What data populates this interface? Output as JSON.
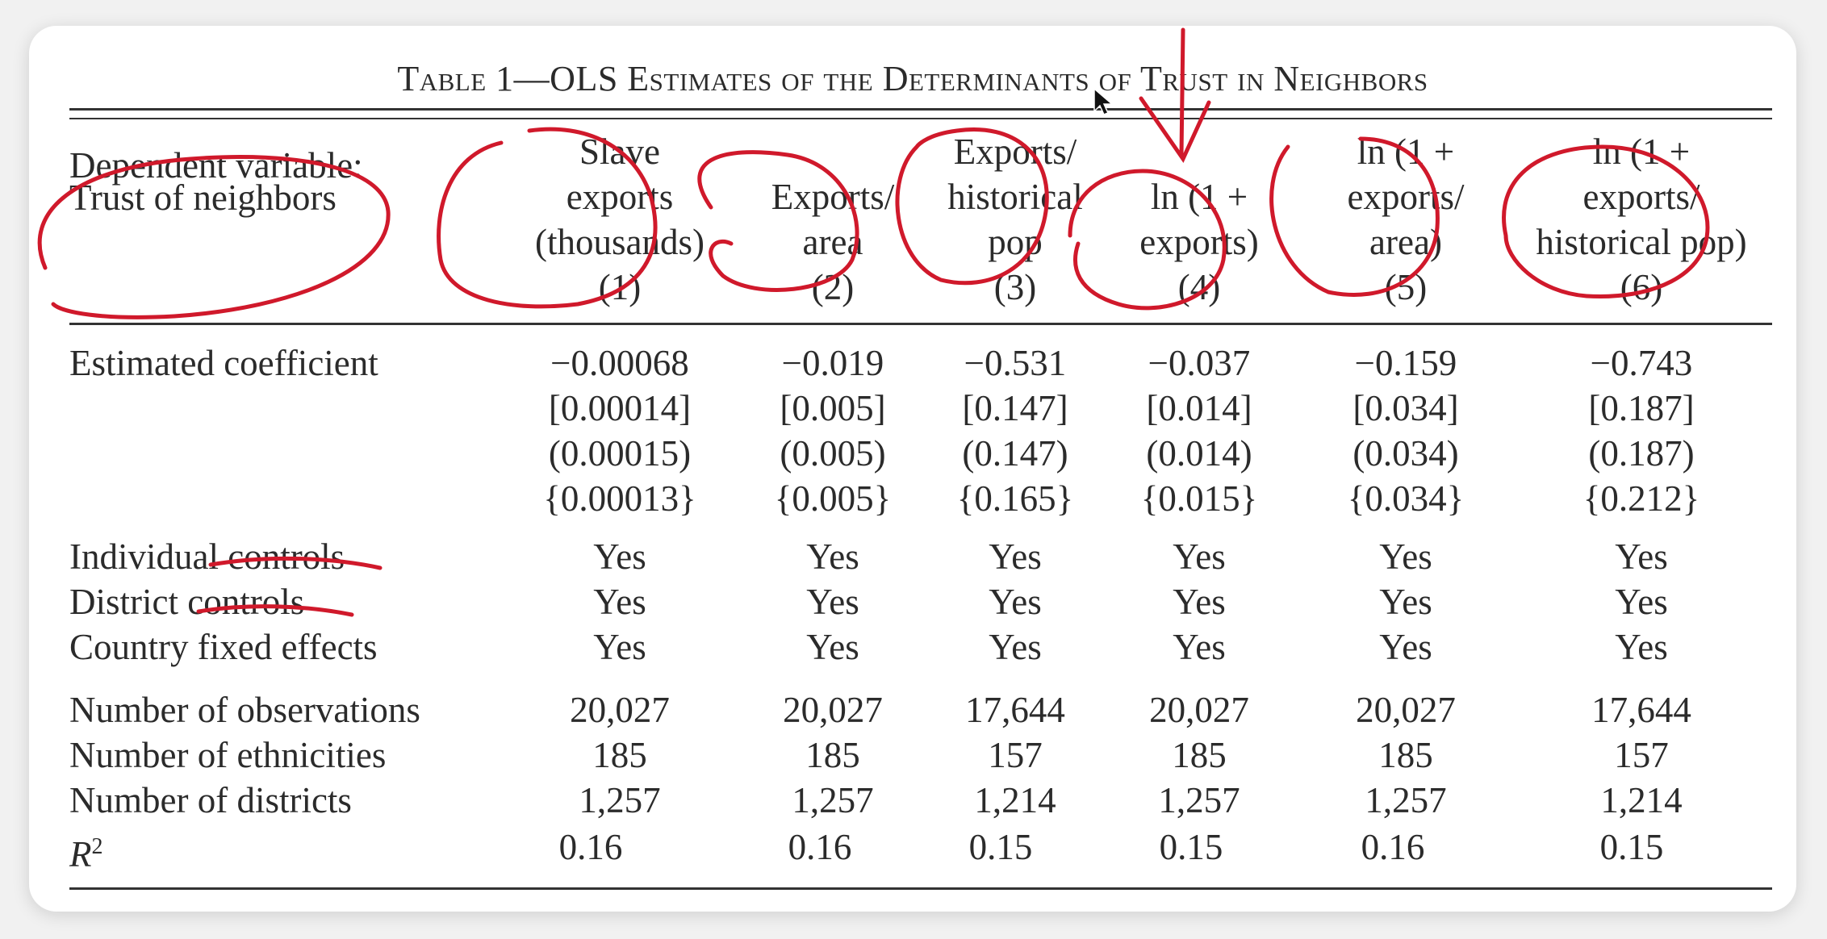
{
  "table": {
    "title_parts": {
      "t1": "Table 1—OLS Estimates of the Determinants of Trust in Neighbors"
    },
    "stub_header": [
      "Dependent variable:",
      "Trust of neighbors"
    ],
    "columns": [
      {
        "lines": [
          "Slave",
          "exports",
          "(thousands)"
        ],
        "num": "(1)"
      },
      {
        "lines": [
          "Exports/",
          "area"
        ],
        "num": "(2)"
      },
      {
        "lines": [
          "Exports/",
          "historical",
          "pop"
        ],
        "num": "(3)"
      },
      {
        "lines": [
          "ln (1 +",
          "exports)"
        ],
        "num": "(4)"
      },
      {
        "lines": [
          "ln (1 +",
          "exports/",
          "area)"
        ],
        "num": "(5)"
      },
      {
        "lines": [
          "ln (1 +",
          "exports/",
          "historical pop)"
        ],
        "num": "(6)"
      }
    ],
    "coef_label": "Estimated coefficient",
    "coef": [
      "−0.00068",
      "−0.019",
      "−0.531",
      "−0.037",
      "−0.159",
      "−0.743"
    ],
    "se_bracket": [
      "[0.00014]",
      "[0.005]",
      "[0.147]",
      "[0.014]",
      "[0.034]",
      "[0.187]"
    ],
    "se_paren": [
      "(0.00015)",
      "(0.005)",
      "(0.147)",
      "(0.014)",
      "(0.034)",
      "(0.187)"
    ],
    "se_brace": [
      "{0.00013}",
      "{0.005}",
      "{0.165}",
      "{0.015}",
      "{0.034}",
      "{0.212}"
    ],
    "controls": [
      {
        "label": "Individual controls",
        "values": [
          "Yes",
          "Yes",
          "Yes",
          "Yes",
          "Yes",
          "Yes"
        ]
      },
      {
        "label": "District controls",
        "values": [
          "Yes",
          "Yes",
          "Yes",
          "Yes",
          "Yes",
          "Yes"
        ]
      },
      {
        "label": "Country fixed effects",
        "values": [
          "Yes",
          "Yes",
          "Yes",
          "Yes",
          "Yes",
          "Yes"
        ]
      }
    ],
    "stats": [
      {
        "label": "Number of observations",
        "values": [
          "20,027",
          "20,027",
          "17,644",
          "20,027",
          "20,027",
          "17,644"
        ]
      },
      {
        "label": "Number of ethnicities",
        "values": [
          "185",
          "185",
          "157",
          "185",
          "185",
          "157"
        ]
      },
      {
        "label": "Number of districts",
        "values": [
          "1,257",
          "1,257",
          "1,214",
          "1,257",
          "1,257",
          "1,214"
        ]
      }
    ],
    "r2_label": "R",
    "r2_sup": "2",
    "r2": [
      "0.16",
      "0.16",
      "0.15",
      "0.15",
      "0.16",
      "0.15"
    ]
  },
  "colors": {
    "annotation": "#d0192b",
    "ink": "#2b2b2b",
    "background": "#f1f1f1"
  },
  "icons": [
    "mouse-cursor-icon"
  ]
}
